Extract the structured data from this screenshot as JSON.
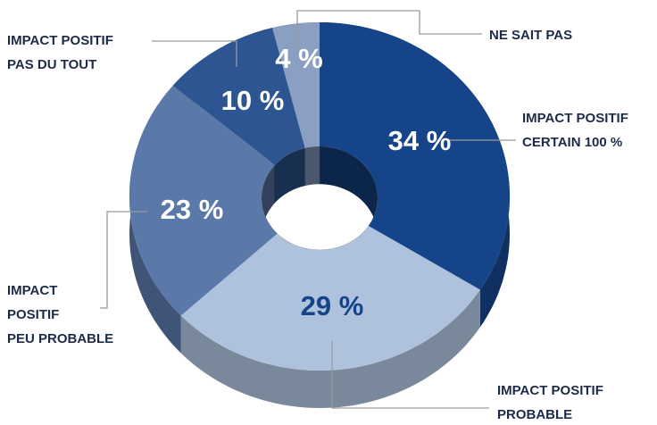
{
  "chart_data": {
    "type": "donut3d",
    "categories": [
      "IMPACT POSITIF\nCERTAIN 100 %",
      "IMPACT POSITIF\nPROBABLE",
      "IMPACT\nPOSITIF\nPEU PROBABLE",
      "IMPACT POSITIF\nPAS DU TOUT",
      "NE SAIT PAS"
    ],
    "values": [
      34,
      29,
      23,
      10,
      4
    ],
    "value_labels": [
      "34 %",
      "29 %",
      "23 %",
      "10 %",
      "4 %"
    ],
    "colors": [
      "#164489",
      "#afc2dd",
      "#5a78a8",
      "#2d5592",
      "#8a9fc2"
    ]
  }
}
